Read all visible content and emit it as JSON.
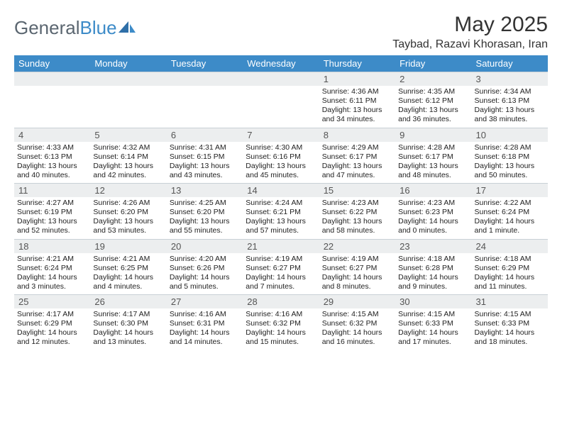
{
  "logo": {
    "text1": "General",
    "text2": "Blue"
  },
  "title": "May 2025",
  "location": "Taybad, Razavi Khorasan, Iran",
  "colors": {
    "header_bg": "#3d8bc8",
    "header_text": "#ffffff",
    "daynum_bg": "#eceeef",
    "border": "#c9d0d6",
    "body_text": "#222222",
    "title_text": "#333333",
    "logo_text": "#5b6670",
    "logo_accent": "#3d8bc8",
    "page_bg": "#ffffff"
  },
  "day_headers": [
    "Sunday",
    "Monday",
    "Tuesday",
    "Wednesday",
    "Thursday",
    "Friday",
    "Saturday"
  ],
  "weeks": [
    [
      {
        "n": "",
        "sunrise": "",
        "sunset": "",
        "daylight": ""
      },
      {
        "n": "",
        "sunrise": "",
        "sunset": "",
        "daylight": ""
      },
      {
        "n": "",
        "sunrise": "",
        "sunset": "",
        "daylight": ""
      },
      {
        "n": "",
        "sunrise": "",
        "sunset": "",
        "daylight": ""
      },
      {
        "n": "1",
        "sunrise": "Sunrise: 4:36 AM",
        "sunset": "Sunset: 6:11 PM",
        "daylight": "Daylight: 13 hours and 34 minutes."
      },
      {
        "n": "2",
        "sunrise": "Sunrise: 4:35 AM",
        "sunset": "Sunset: 6:12 PM",
        "daylight": "Daylight: 13 hours and 36 minutes."
      },
      {
        "n": "3",
        "sunrise": "Sunrise: 4:34 AM",
        "sunset": "Sunset: 6:13 PM",
        "daylight": "Daylight: 13 hours and 38 minutes."
      }
    ],
    [
      {
        "n": "4",
        "sunrise": "Sunrise: 4:33 AM",
        "sunset": "Sunset: 6:13 PM",
        "daylight": "Daylight: 13 hours and 40 minutes."
      },
      {
        "n": "5",
        "sunrise": "Sunrise: 4:32 AM",
        "sunset": "Sunset: 6:14 PM",
        "daylight": "Daylight: 13 hours and 42 minutes."
      },
      {
        "n": "6",
        "sunrise": "Sunrise: 4:31 AM",
        "sunset": "Sunset: 6:15 PM",
        "daylight": "Daylight: 13 hours and 43 minutes."
      },
      {
        "n": "7",
        "sunrise": "Sunrise: 4:30 AM",
        "sunset": "Sunset: 6:16 PM",
        "daylight": "Daylight: 13 hours and 45 minutes."
      },
      {
        "n": "8",
        "sunrise": "Sunrise: 4:29 AM",
        "sunset": "Sunset: 6:17 PM",
        "daylight": "Daylight: 13 hours and 47 minutes."
      },
      {
        "n": "9",
        "sunrise": "Sunrise: 4:28 AM",
        "sunset": "Sunset: 6:17 PM",
        "daylight": "Daylight: 13 hours and 48 minutes."
      },
      {
        "n": "10",
        "sunrise": "Sunrise: 4:28 AM",
        "sunset": "Sunset: 6:18 PM",
        "daylight": "Daylight: 13 hours and 50 minutes."
      }
    ],
    [
      {
        "n": "11",
        "sunrise": "Sunrise: 4:27 AM",
        "sunset": "Sunset: 6:19 PM",
        "daylight": "Daylight: 13 hours and 52 minutes."
      },
      {
        "n": "12",
        "sunrise": "Sunrise: 4:26 AM",
        "sunset": "Sunset: 6:20 PM",
        "daylight": "Daylight: 13 hours and 53 minutes."
      },
      {
        "n": "13",
        "sunrise": "Sunrise: 4:25 AM",
        "sunset": "Sunset: 6:20 PM",
        "daylight": "Daylight: 13 hours and 55 minutes."
      },
      {
        "n": "14",
        "sunrise": "Sunrise: 4:24 AM",
        "sunset": "Sunset: 6:21 PM",
        "daylight": "Daylight: 13 hours and 57 minutes."
      },
      {
        "n": "15",
        "sunrise": "Sunrise: 4:23 AM",
        "sunset": "Sunset: 6:22 PM",
        "daylight": "Daylight: 13 hours and 58 minutes."
      },
      {
        "n": "16",
        "sunrise": "Sunrise: 4:23 AM",
        "sunset": "Sunset: 6:23 PM",
        "daylight": "Daylight: 14 hours and 0 minutes."
      },
      {
        "n": "17",
        "sunrise": "Sunrise: 4:22 AM",
        "sunset": "Sunset: 6:24 PM",
        "daylight": "Daylight: 14 hours and 1 minute."
      }
    ],
    [
      {
        "n": "18",
        "sunrise": "Sunrise: 4:21 AM",
        "sunset": "Sunset: 6:24 PM",
        "daylight": "Daylight: 14 hours and 3 minutes."
      },
      {
        "n": "19",
        "sunrise": "Sunrise: 4:21 AM",
        "sunset": "Sunset: 6:25 PM",
        "daylight": "Daylight: 14 hours and 4 minutes."
      },
      {
        "n": "20",
        "sunrise": "Sunrise: 4:20 AM",
        "sunset": "Sunset: 6:26 PM",
        "daylight": "Daylight: 14 hours and 5 minutes."
      },
      {
        "n": "21",
        "sunrise": "Sunrise: 4:19 AM",
        "sunset": "Sunset: 6:27 PM",
        "daylight": "Daylight: 14 hours and 7 minutes."
      },
      {
        "n": "22",
        "sunrise": "Sunrise: 4:19 AM",
        "sunset": "Sunset: 6:27 PM",
        "daylight": "Daylight: 14 hours and 8 minutes."
      },
      {
        "n": "23",
        "sunrise": "Sunrise: 4:18 AM",
        "sunset": "Sunset: 6:28 PM",
        "daylight": "Daylight: 14 hours and 9 minutes."
      },
      {
        "n": "24",
        "sunrise": "Sunrise: 4:18 AM",
        "sunset": "Sunset: 6:29 PM",
        "daylight": "Daylight: 14 hours and 11 minutes."
      }
    ],
    [
      {
        "n": "25",
        "sunrise": "Sunrise: 4:17 AM",
        "sunset": "Sunset: 6:29 PM",
        "daylight": "Daylight: 14 hours and 12 minutes."
      },
      {
        "n": "26",
        "sunrise": "Sunrise: 4:17 AM",
        "sunset": "Sunset: 6:30 PM",
        "daylight": "Daylight: 14 hours and 13 minutes."
      },
      {
        "n": "27",
        "sunrise": "Sunrise: 4:16 AM",
        "sunset": "Sunset: 6:31 PM",
        "daylight": "Daylight: 14 hours and 14 minutes."
      },
      {
        "n": "28",
        "sunrise": "Sunrise: 4:16 AM",
        "sunset": "Sunset: 6:32 PM",
        "daylight": "Daylight: 14 hours and 15 minutes."
      },
      {
        "n": "29",
        "sunrise": "Sunrise: 4:15 AM",
        "sunset": "Sunset: 6:32 PM",
        "daylight": "Daylight: 14 hours and 16 minutes."
      },
      {
        "n": "30",
        "sunrise": "Sunrise: 4:15 AM",
        "sunset": "Sunset: 6:33 PM",
        "daylight": "Daylight: 14 hours and 17 minutes."
      },
      {
        "n": "31",
        "sunrise": "Sunrise: 4:15 AM",
        "sunset": "Sunset: 6:33 PM",
        "daylight": "Daylight: 14 hours and 18 minutes."
      }
    ]
  ]
}
